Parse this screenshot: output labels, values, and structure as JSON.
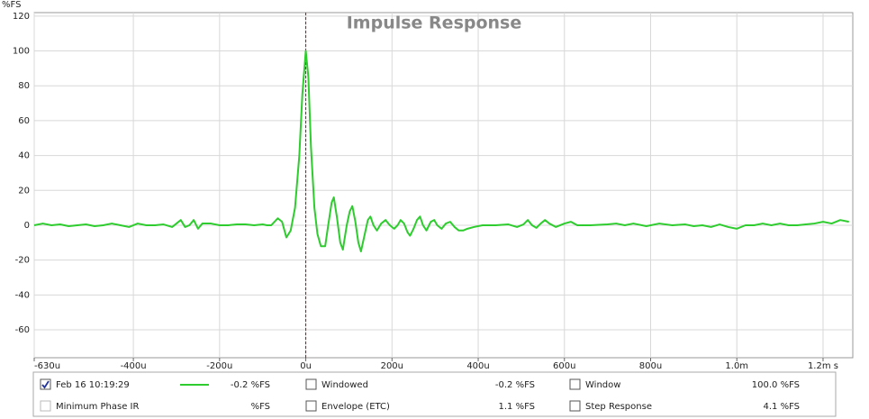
{
  "chart_data": {
    "type": "line",
    "title": "Impulse Response",
    "y_unit": "%FS",
    "x": [
      -630,
      -610,
      -590,
      -570,
      -550,
      -530,
      -510,
      -490,
      -470,
      -450,
      -430,
      -410,
      -390,
      -370,
      -350,
      -330,
      -310,
      -300,
      -290,
      -280,
      -270,
      -260,
      -250,
      -240,
      -220,
      -200,
      -180,
      -160,
      -140,
      -120,
      -100,
      -90,
      -80,
      -65,
      -55,
      -45,
      -35,
      -25,
      -15,
      -8,
      0,
      6,
      12,
      20,
      27,
      35,
      45,
      52,
      60,
      65,
      72,
      80,
      86,
      95,
      102,
      108,
      115,
      122,
      128,
      136,
      144,
      150,
      157,
      165,
      175,
      185,
      195,
      205,
      213,
      220,
      228,
      236,
      242,
      250,
      258,
      265,
      272,
      280,
      290,
      298,
      305,
      315,
      325,
      335,
      345,
      355,
      365,
      375,
      390,
      410,
      440,
      470,
      490,
      505,
      515,
      525,
      535,
      545,
      555,
      565,
      580,
      600,
      615,
      630,
      660,
      700,
      720,
      740,
      760,
      790,
      820,
      850,
      880,
      900,
      920,
      940,
      960,
      980,
      1000,
      1020,
      1040,
      1060,
      1080,
      1100,
      1120,
      1140,
      1160,
      1180,
      1200,
      1220,
      1240,
      1260
    ],
    "series": [
      {
        "name": "Feb 16 10:19:29",
        "color": "#2ecc2e",
        "legend_value": "-0.2 %FS",
        "checked": true,
        "values": [
          0,
          1,
          0,
          0.5,
          -0.5,
          0,
          0.5,
          -0.5,
          0,
          1,
          0,
          -1,
          1,
          0,
          0,
          0.5,
          -1,
          1,
          3,
          -1,
          0,
          3,
          -2,
          1,
          1,
          0,
          0,
          0.5,
          0.5,
          0,
          0.5,
          0,
          0,
          4,
          2,
          -7,
          -3,
          10,
          40,
          75,
          100,
          85,
          45,
          10,
          -5,
          -12,
          -12,
          0,
          13,
          16,
          5,
          -10,
          -14,
          0,
          8,
          11,
          2,
          -10,
          -15,
          -6,
          3,
          5,
          0,
          -3,
          1,
          3,
          0,
          -2,
          0,
          3,
          1,
          -4,
          -6,
          -2,
          3,
          5,
          0,
          -3,
          2,
          3,
          0,
          -2,
          1,
          2,
          -1,
          -3,
          -3,
          -2,
          -1,
          0,
          0,
          0.5,
          -1,
          0.5,
          3,
          0,
          -1.5,
          1,
          3,
          1,
          -1,
          1,
          2,
          0,
          0,
          0.5,
          1,
          0,
          1,
          -0.5,
          1,
          0,
          0.5,
          -0.5,
          0,
          -1,
          0.5,
          -1,
          -2,
          0,
          0,
          1,
          0,
          1,
          0,
          0,
          0.5,
          1,
          2,
          1,
          3,
          2
        ]
      }
    ],
    "xlim": [
      -630,
      1269
    ],
    "ylim": [
      -76,
      122
    ],
    "xticks": [
      {
        "value": -630,
        "label": "-630u"
      },
      {
        "value": -400,
        "label": "-400u"
      },
      {
        "value": -200,
        "label": "-200u"
      },
      {
        "value": 0,
        "label": "0u"
      },
      {
        "value": 200,
        "label": "200u"
      },
      {
        "value": 400,
        "label": "400u"
      },
      {
        "value": 600,
        "label": "600u"
      },
      {
        "value": 800,
        "label": "800u"
      },
      {
        "value": 1000,
        "label": "1.0m"
      },
      {
        "value": 1200,
        "label": "1.2m s"
      }
    ],
    "yticks": [
      -60,
      -40,
      -20,
      0,
      20,
      40,
      60,
      80,
      100,
      120
    ],
    "grid": true,
    "reference_line": {
      "x": 0,
      "color": "#cc0000"
    }
  },
  "legend_panel": {
    "items": [
      {
        "label": "Windowed",
        "value": "-0.2 %FS",
        "checked": false,
        "enabled": true,
        "color": "#22bb22"
      },
      {
        "label": "Window",
        "value": "100.0 %FS",
        "checked": false,
        "enabled": true,
        "color": "#1a1aaa"
      },
      {
        "label": "Minimum Phase IR",
        "value": "%FS",
        "checked": false,
        "enabled": false,
        "color": "#aaaaaa"
      },
      {
        "label": "Envelope (ETC)",
        "value": "1.1 %FS",
        "checked": false,
        "enabled": true,
        "color": "#226622"
      },
      {
        "label": "Step Response",
        "value": "4.1 %FS",
        "checked": false,
        "enabled": true,
        "color": "#226622"
      }
    ]
  }
}
